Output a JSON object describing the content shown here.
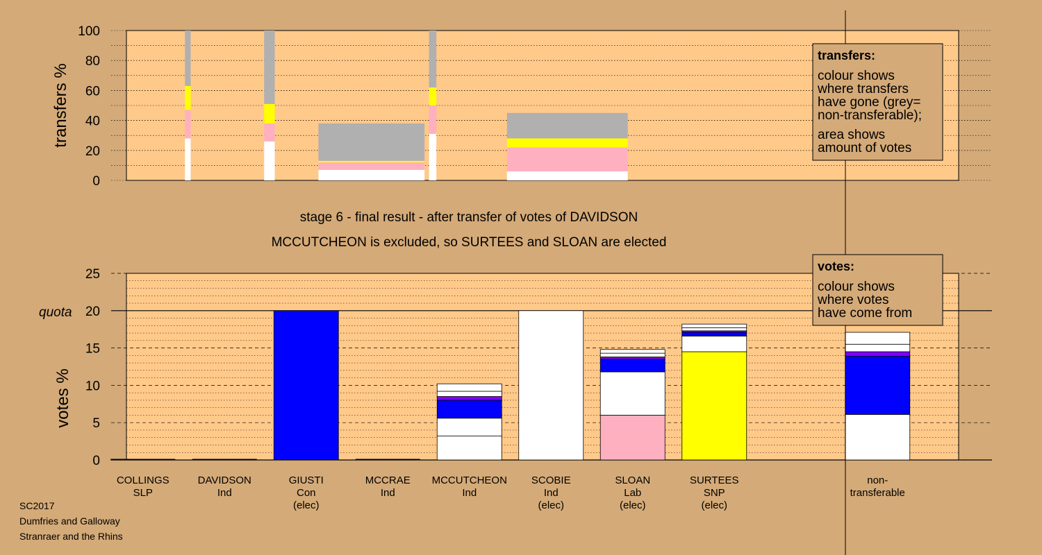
{
  "caption": {
    "line1": "stage 6 - final result - after transfer of votes of DAVIDSON",
    "line2": "MCCUTCHEON is excluded, so SURTEES and SLOAN are elected"
  },
  "footer": [
    "SC2017",
    "Dumfries and Galloway",
    "Stranraer and the Rhins"
  ],
  "legend_transfers": {
    "title": "transfers:",
    "lines": [
      "colour shows",
      "where transfers",
      "have gone (grey=",
      "non-transferable);",
      "area shows",
      "amount of votes"
    ]
  },
  "legend_votes": {
    "title": "votes:",
    "lines": [
      "colour shows",
      "where votes",
      "have come from"
    ]
  },
  "colors": {
    "background": "#d4aa78",
    "plot_bg": "#ffc98a",
    "Con": "#0000ff",
    "SNP": "#ffff00",
    "Lab": "#ffb0c0",
    "Ind": "#ffffff",
    "purple": "#8000ff",
    "grey": "#b0b0b0"
  },
  "chart_data": [
    {
      "type": "bar",
      "name": "transfers",
      "ylabel": "transfers %",
      "ylim": [
        0,
        100
      ],
      "yticks": [
        0,
        20,
        40,
        60,
        80,
        100
      ],
      "grid": true,
      "bars": [
        {
          "slot": 0.55,
          "width": 0.07,
          "segments": [
            {
              "color": "#ffffff",
              "value": 28
            },
            {
              "color": "#ffb0c0",
              "value": 19
            },
            {
              "color": "#ffff00",
              "value": 16
            },
            {
              "color": "#b0b0b0",
              "value": 37
            }
          ]
        },
        {
          "slot": 1.55,
          "width": 0.13,
          "segments": [
            {
              "color": "#ffffff",
              "value": 26
            },
            {
              "color": "#ffb0c0",
              "value": 12
            },
            {
              "color": "#ffff00",
              "value": 13
            },
            {
              "color": "#b0b0b0",
              "value": 49
            }
          ]
        },
        {
          "slot": 2.8,
          "width": 1.3,
          "segments": [
            {
              "color": "#ffffff",
              "value": 7
            },
            {
              "color": "#ffb0c0",
              "value": 5
            },
            {
              "color": "#ffff00",
              "value": 1
            },
            {
              "color": "#b0b0b0",
              "value": 25
            }
          ]
        },
        {
          "slot": 3.55,
          "width": 0.09,
          "segments": [
            {
              "color": "#ffffff",
              "value": 31
            },
            {
              "color": "#ffb0c0",
              "value": 19
            },
            {
              "color": "#ffff00",
              "value": 12
            },
            {
              "color": "#b0b0b0",
              "value": 38
            }
          ]
        },
        {
          "slot": 5.2,
          "width": 1.48,
          "segments": [
            {
              "color": "#ffffff",
              "value": 6
            },
            {
              "color": "#ffb0c0",
              "value": 16
            },
            {
              "color": "#ffff00",
              "value": 6
            },
            {
              "color": "#b0b0b0",
              "value": 17
            }
          ]
        }
      ]
    },
    {
      "type": "bar",
      "name": "votes",
      "ylabel": "votes %",
      "ylim": [
        0,
        25
      ],
      "yticks": [
        0,
        5,
        10,
        15,
        20,
        25
      ],
      "quota": 20,
      "quota_label": "quota",
      "grid": true,
      "categories": [
        {
          "line1": "COLLINGS",
          "line2": "SLP",
          "line3": ""
        },
        {
          "line1": "DAVIDSON",
          "line2": "Ind",
          "line3": ""
        },
        {
          "line1": "GIUSTI",
          "line2": "Con",
          "line3": "(elec)"
        },
        {
          "line1": "MCCRAE",
          "line2": "Ind",
          "line3": ""
        },
        {
          "line1": "MCCUTCHEON",
          "line2": "Ind",
          "line3": ""
        },
        {
          "line1": "SCOBIE",
          "line2": "Ind",
          "line3": "(elec)"
        },
        {
          "line1": "SLOAN",
          "line2": "Lab",
          "line3": "(elec)"
        },
        {
          "line1": "SURTEES",
          "line2": "SNP",
          "line3": "(elec)"
        },
        {
          "line1": "",
          "line2": "",
          "line3": ""
        },
        {
          "line1": "non-",
          "line2": "transferable",
          "line3": ""
        }
      ],
      "stacks": [
        [],
        [],
        [
          {
            "color": "#0000ff",
            "value": 20
          }
        ],
        [],
        [
          {
            "color": "#ffffff",
            "value": 3.2
          },
          {
            "color": "#ffffff",
            "value": 2.4
          },
          {
            "color": "#0000ff",
            "value": 2.4
          },
          {
            "color": "#8000ff",
            "value": 0.5
          },
          {
            "color": "#ffffff",
            "value": 0.7
          },
          {
            "color": "#ffffff",
            "value": 1.0
          }
        ],
        [
          {
            "color": "#ffffff",
            "value": 20
          }
        ],
        [
          {
            "color": "#ffb0c0",
            "value": 6.0
          },
          {
            "color": "#ffffff",
            "value": 5.8
          },
          {
            "color": "#0000ff",
            "value": 1.7
          },
          {
            "color": "#8000ff",
            "value": 0.3
          },
          {
            "color": "#ffffff",
            "value": 0.5
          },
          {
            "color": "#ffffff",
            "value": 0.5
          }
        ],
        [
          {
            "color": "#ffff00",
            "value": 14.5
          },
          {
            "color": "#ffffff",
            "value": 2.1
          },
          {
            "color": "#0000ff",
            "value": 0.5
          },
          {
            "color": "#8000ff",
            "value": 0.2
          },
          {
            "color": "#ffffff",
            "value": 0.4
          },
          {
            "color": "#ffffff",
            "value": 0.5
          }
        ],
        [],
        [
          {
            "color": "#ffffff",
            "value": 6.1
          },
          {
            "color": "#0000ff",
            "value": 7.8
          },
          {
            "color": "#8000ff",
            "value": 0.6
          },
          {
            "color": "#ffffff",
            "value": 1.0
          },
          {
            "color": "#ffffff",
            "value": 1.6
          }
        ]
      ]
    }
  ]
}
